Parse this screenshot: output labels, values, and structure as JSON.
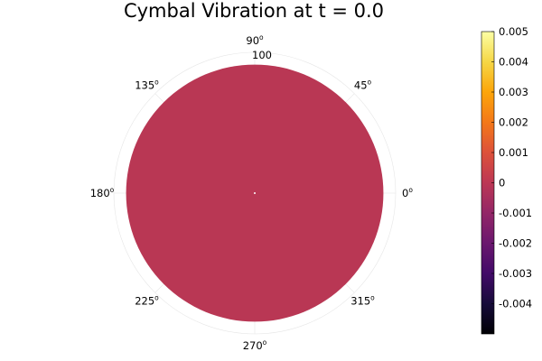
{
  "chart_data": {
    "type": "heatmap",
    "projection": "polar",
    "title": "Cymbal Vibration at t = 0.0",
    "angular_ticks": [
      {
        "deg": 0,
        "label": "0",
        "unit": "o"
      },
      {
        "deg": 45,
        "label": "45",
        "unit": "o"
      },
      {
        "deg": 90,
        "label": "90",
        "unit": "o"
      },
      {
        "deg": 135,
        "label": "135",
        "unit": "o"
      },
      {
        "deg": 180,
        "label": "180",
        "unit": "o"
      },
      {
        "deg": 225,
        "label": "225",
        "unit": "o"
      },
      {
        "deg": 270,
        "label": "270",
        "unit": "o"
      },
      {
        "deg": 315,
        "label": "315",
        "unit": "o"
      }
    ],
    "radial_tick_label": "100",
    "radial_max": 100,
    "data_radius": 100,
    "field_value": 0,
    "field_color": "#b93754",
    "colormap": "inferno",
    "colorbar": {
      "clim": [
        -0.005,
        0.005
      ],
      "ticks": [
        {
          "value": 0.005,
          "label": "0.005"
        },
        {
          "value": 0.004,
          "label": "0.004"
        },
        {
          "value": 0.003,
          "label": "0.003"
        },
        {
          "value": 0.002,
          "label": "0.002"
        },
        {
          "value": 0.001,
          "label": "0.001"
        },
        {
          "value": 0,
          "label": "0"
        },
        {
          "value": -0.001,
          "label": "-0.001"
        },
        {
          "value": -0.002,
          "label": "-0.002"
        },
        {
          "value": -0.003,
          "label": "-0.003"
        },
        {
          "value": -0.004,
          "label": "-0.004"
        }
      ]
    }
  }
}
